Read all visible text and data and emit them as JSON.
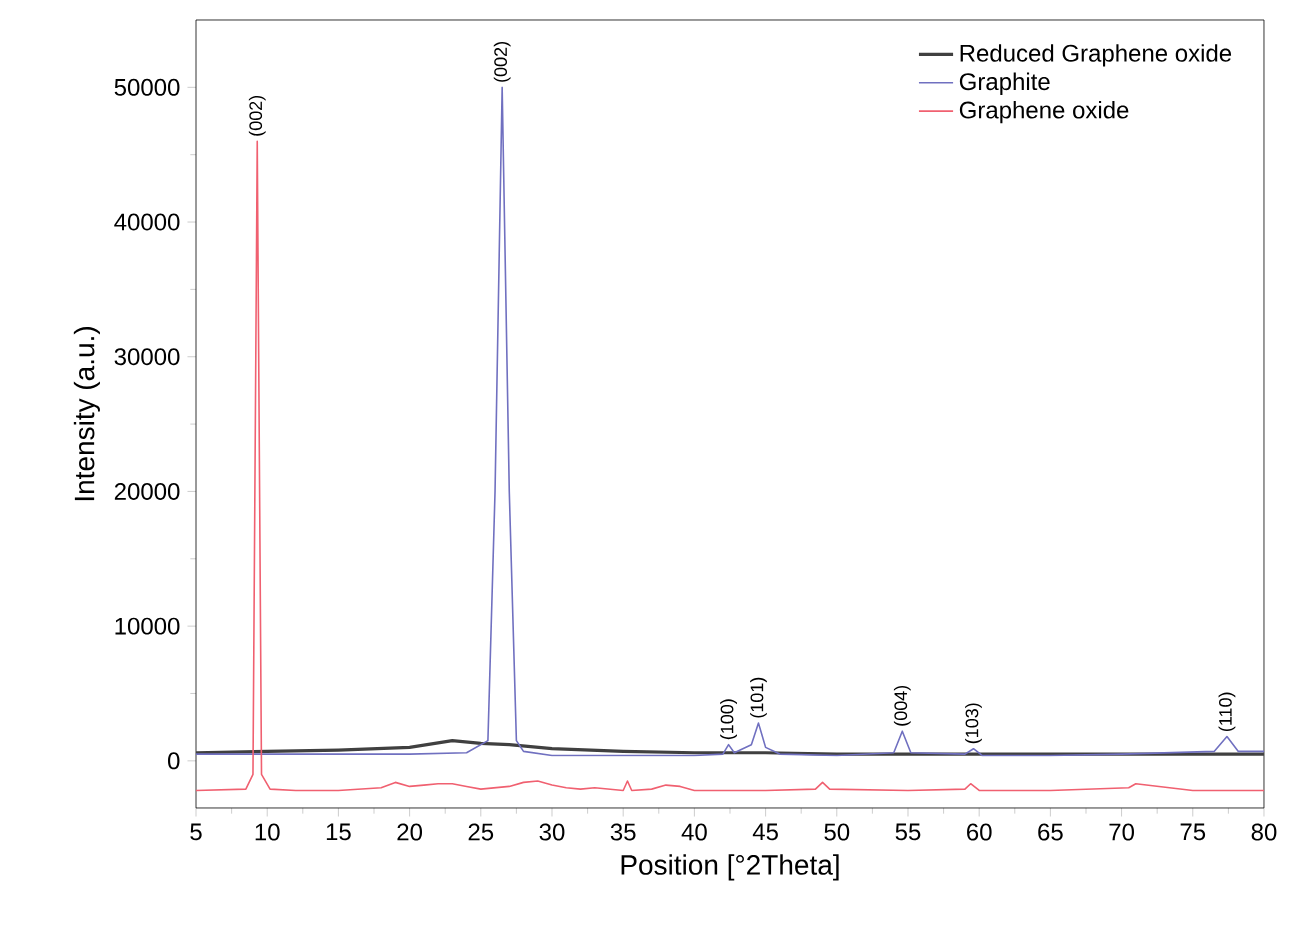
{
  "chart_data": {
    "type": "line",
    "xlabel": "Position [°2Theta]",
    "ylabel": "Intensity (a.u.)",
    "xlim": [
      5,
      80
    ],
    "ylim": [
      -3500,
      55000
    ],
    "xticks": [
      5,
      10,
      15,
      20,
      25,
      30,
      35,
      40,
      45,
      50,
      55,
      60,
      65,
      70,
      75,
      80
    ],
    "yticks": [
      0,
      10000,
      20000,
      30000,
      40000,
      50000
    ],
    "grid": false,
    "legend": "top right",
    "marker": "none",
    "line_style": "solid",
    "series": [
      {
        "name": "Reduced Graphene oxide",
        "color": "#404040",
        "x": [
          5,
          10,
          15,
          20,
          23,
          25,
          27,
          30,
          35,
          40,
          45,
          50,
          60,
          70,
          80
        ],
        "values": [
          600,
          700,
          800,
          1000,
          1500,
          1300,
          1200,
          900,
          700,
          600,
          600,
          500,
          500,
          500,
          500
        ]
      },
      {
        "name": "Graphite",
        "color": "#7070c0",
        "x": [
          5,
          10,
          20,
          24,
          25.5,
          26,
          26.5,
          27,
          27.5,
          28,
          30,
          35,
          40,
          42,
          42.4,
          42.8,
          44,
          44.5,
          45,
          46,
          50,
          54,
          54.6,
          55.2,
          59,
          59.6,
          60.2,
          65,
          70,
          76.5,
          77.4,
          78.2,
          80
        ],
        "values": [
          500,
          500,
          500,
          600,
          1500,
          20000,
          50000,
          20000,
          1500,
          700,
          400,
          400,
          400,
          500,
          1200,
          600,
          1200,
          2800,
          1000,
          500,
          400,
          600,
          2200,
          600,
          500,
          900,
          400,
          400,
          500,
          700,
          1800,
          700,
          700
        ]
      },
      {
        "name": "Graphene oxide",
        "color": "#f06070",
        "x": [
          5,
          8.5,
          9.0,
          9.3,
          9.6,
          10.2,
          12,
          15,
          18,
          19,
          20,
          21,
          22,
          23,
          24,
          25,
          27,
          28,
          29,
          30,
          31,
          32,
          33,
          35,
          35.3,
          35.6,
          37,
          38,
          39,
          40,
          45,
          48.5,
          49,
          49.5,
          55,
          59,
          59.4,
          60,
          65,
          70.5,
          71,
          75,
          80
        ],
        "values": [
          -2200,
          -2100,
          -1000,
          46000,
          -1000,
          -2100,
          -2200,
          -2200,
          -2000,
          -1600,
          -1900,
          -1800,
          -1700,
          -1700,
          -1900,
          -2100,
          -1900,
          -1600,
          -1500,
          -1800,
          -2000,
          -2100,
          -2000,
          -2200,
          -1500,
          -2200,
          -2100,
          -1800,
          -1900,
          -2200,
          -2200,
          -2100,
          -1600,
          -2100,
          -2200,
          -2100,
          -1700,
          -2200,
          -2200,
          -2000,
          -1700,
          -2200,
          -2200
        ]
      }
    ],
    "annotations": [
      {
        "text": "(002)",
        "x": 9.3,
        "y": 46000
      },
      {
        "text": "(002)",
        "x": 26.5,
        "y": 50000
      },
      {
        "text": "(100)",
        "x": 42.4,
        "y": 1200
      },
      {
        "text": "(101)",
        "x": 44.5,
        "y": 2800
      },
      {
        "text": "(004)",
        "x": 54.6,
        "y": 2200
      },
      {
        "text": "(103)",
        "x": 59.6,
        "y": 900
      },
      {
        "text": "(110)",
        "x": 77.4,
        "y": 1800
      }
    ]
  }
}
